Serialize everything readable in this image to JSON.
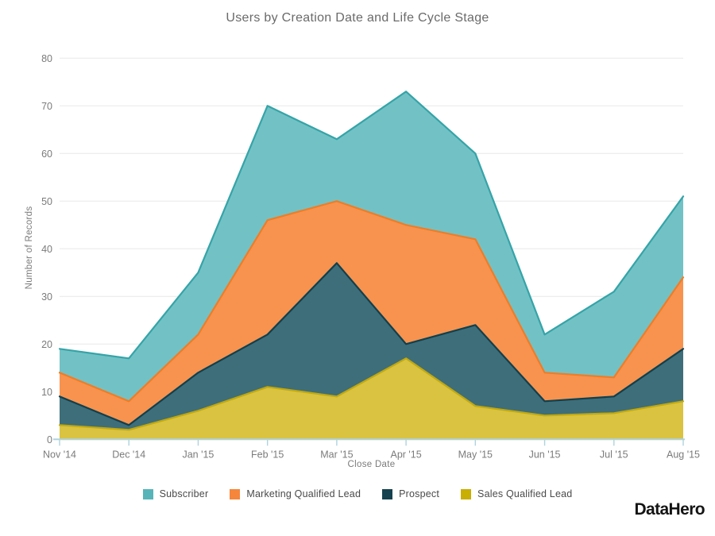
{
  "title": "Users by Creation Date and Life Cycle Stage",
  "chart_data": {
    "type": "area",
    "stacked": true,
    "title": "Users by Creation Date and Life Cycle Stage",
    "xlabel": "Close Date",
    "ylabel": "Number of Records",
    "categories": [
      "Nov '14",
      "Dec '14",
      "Jan '15",
      "Feb '15",
      "Mar '15",
      "Apr '15",
      "May '15",
      "Jun '15",
      "Jul '15",
      "Aug '15"
    ],
    "yticks": [
      0,
      10,
      20,
      30,
      40,
      50,
      60,
      70,
      80
    ],
    "ylim": [
      0,
      80
    ],
    "grid": true,
    "legend_position": "bottom",
    "series": [
      {
        "name": "Sales Qualified Lead",
        "values": [
          3,
          2,
          6,
          11,
          9,
          17,
          7,
          5,
          5.5,
          8
        ],
        "fill": "#D9C340",
        "stroke": "#C3A90D",
        "legend_color": "#C9AE04"
      },
      {
        "name": "Prospect",
        "values": [
          6,
          1,
          8,
          11,
          28,
          3,
          17,
          3,
          3.5,
          11
        ],
        "fill": "#3E6E7A",
        "stroke": "#10404E",
        "legend_color": "#15424E"
      },
      {
        "name": "Marketing Qualified Lead",
        "values": [
          5,
          5,
          8,
          24,
          13,
          25,
          18,
          6,
          4,
          15
        ],
        "fill": "#F7934E",
        "stroke": "#F07C26",
        "legend_color": "#F5863B"
      },
      {
        "name": "Subscriber",
        "values": [
          5,
          9,
          13,
          24,
          13,
          28,
          18,
          8,
          18,
          17
        ],
        "fill": "#72C2C5",
        "stroke": "#35A4A8",
        "legend_color": "#57B4B8"
      }
    ],
    "stack_tops": {
      "Sales Qualified Lead": [
        3,
        2,
        6,
        11,
        9,
        17,
        7,
        5,
        5.5,
        8
      ],
      "Prospect": [
        9,
        3,
        14,
        22,
        37,
        20,
        24,
        8,
        9,
        19
      ],
      "Marketing Qualified Lead": [
        14,
        8,
        22,
        46,
        50,
        45,
        42,
        14,
        13,
        34
      ],
      "Subscriber": [
        19,
        17,
        35,
        70,
        63,
        73,
        60,
        22,
        31,
        51
      ]
    },
    "legend_order": [
      "Subscriber",
      "Marketing Qualified Lead",
      "Prospect",
      "Sales Qualified Lead"
    ]
  },
  "colors": {
    "background": "#ffffff",
    "gridline": "#E8E8E8",
    "axis_line": "#AFD3DE",
    "tick_label": "#7b7b7b",
    "title_text": "#6a6a6a",
    "legend_text": "#4a4a4a",
    "logo_text": "#141414"
  },
  "branding": {
    "logo_text": "DataHero"
  }
}
